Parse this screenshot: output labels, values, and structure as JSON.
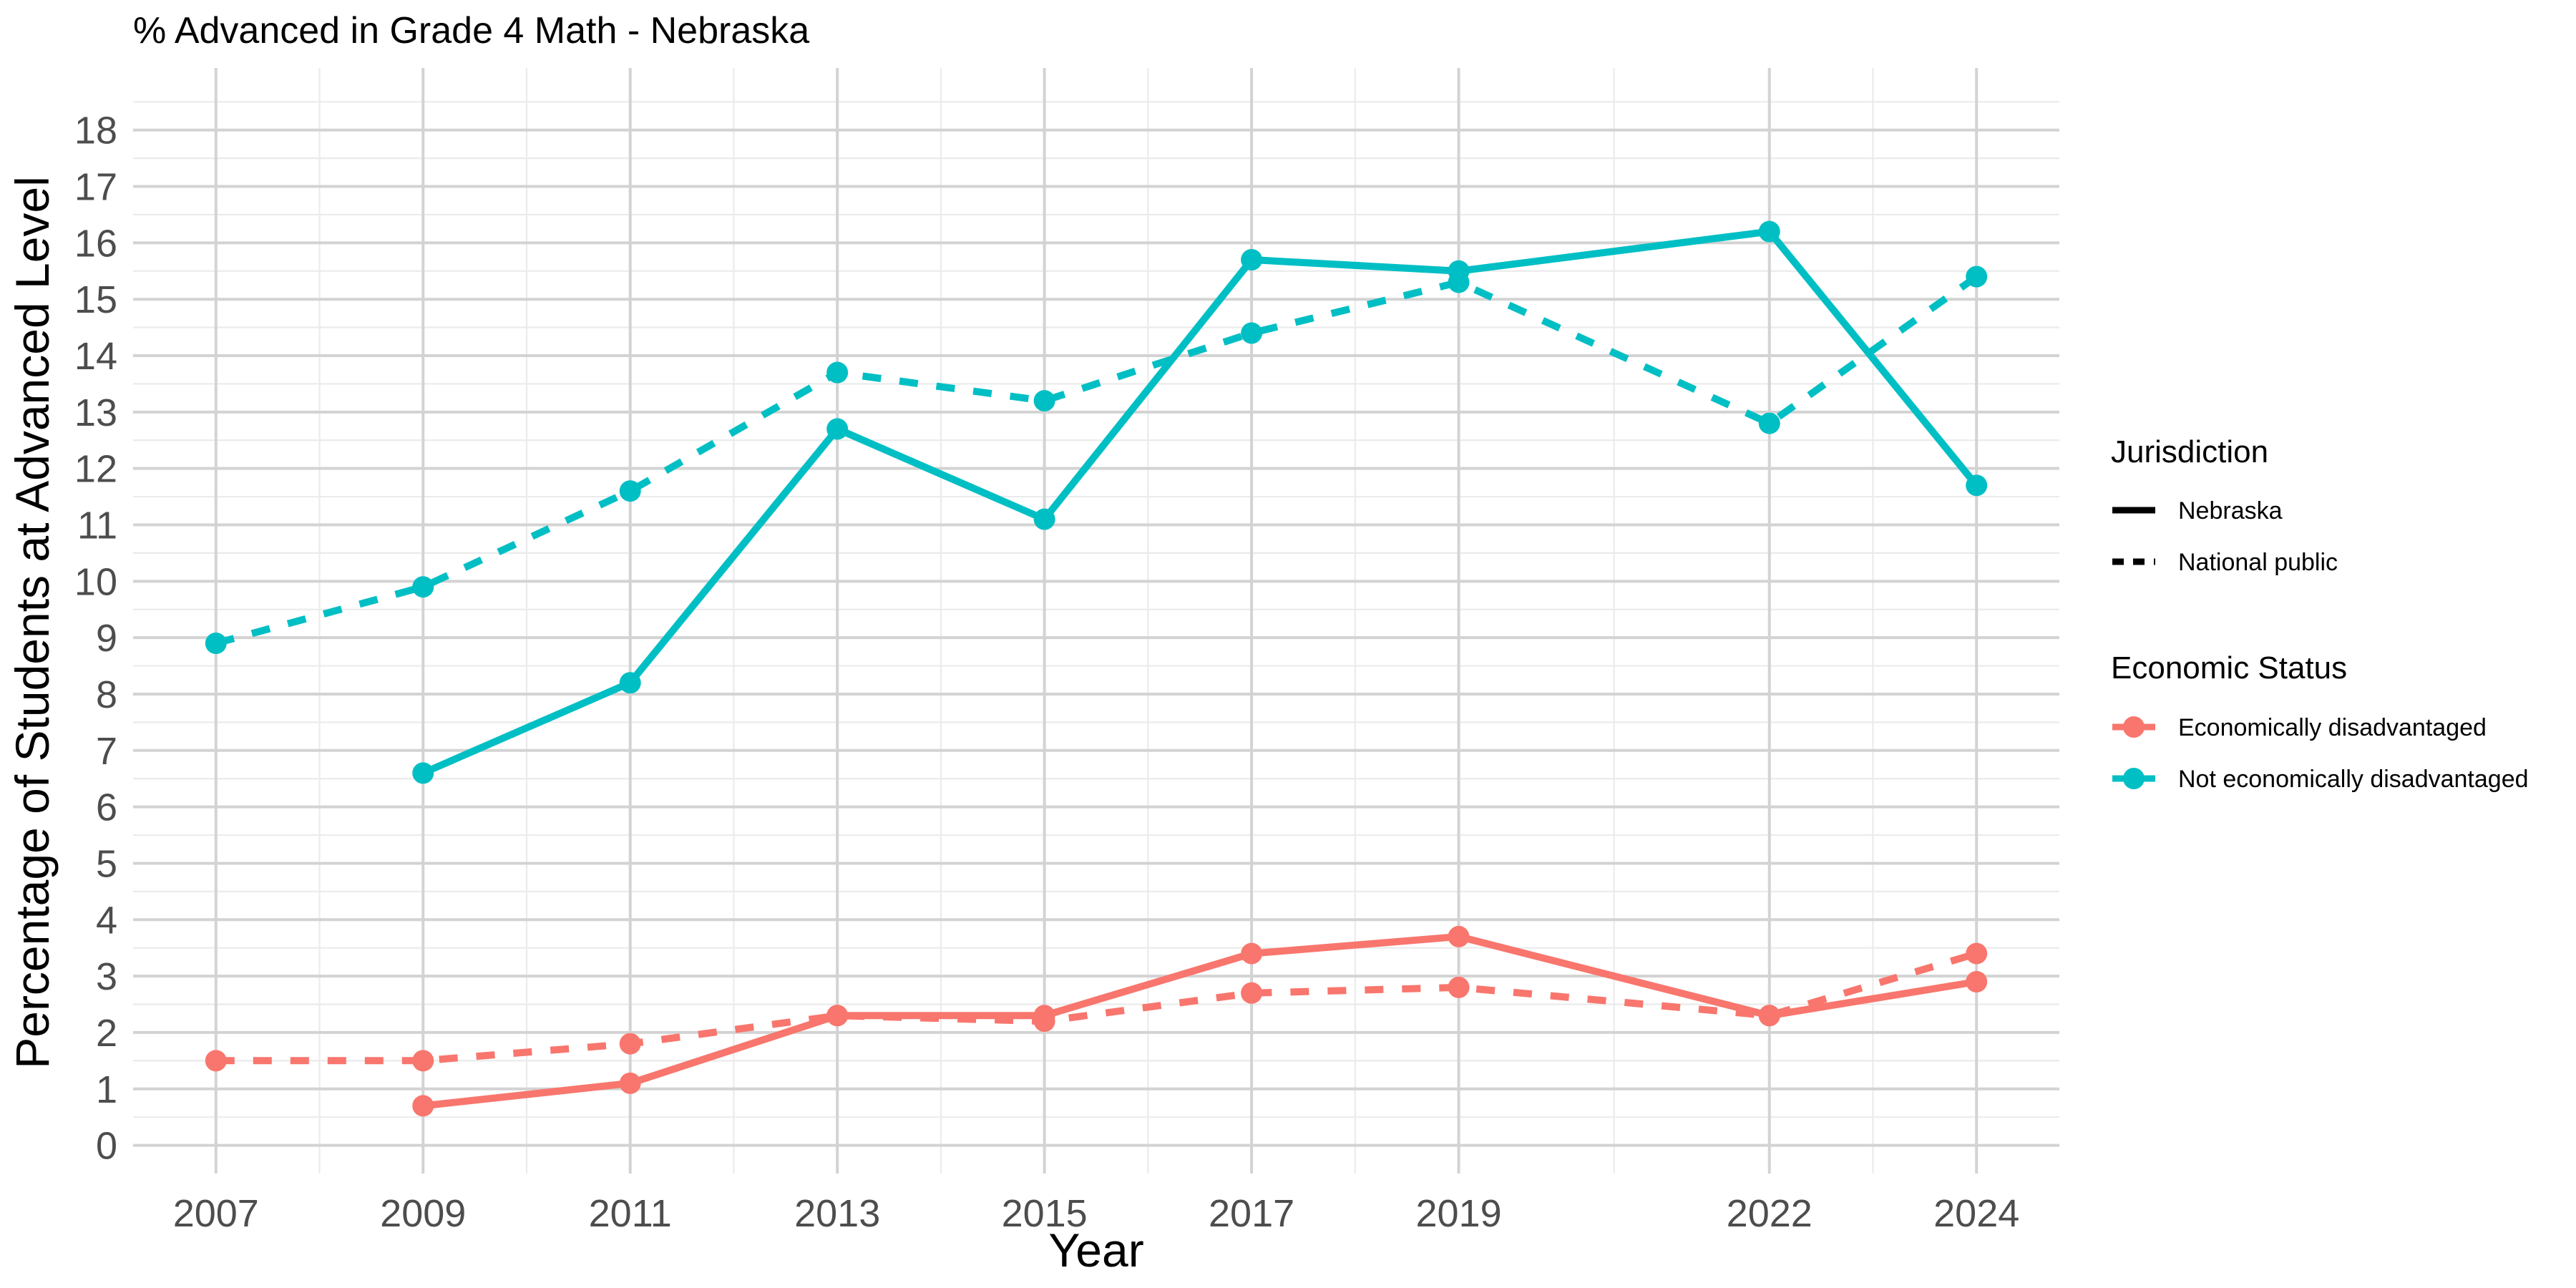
{
  "chart_data": {
    "type": "line",
    "title": "% Advanced in Grade 4 Math - Nebraska",
    "xlabel": "Year",
    "ylabel": "Percentage of Students at Advanced Level",
    "x_ticks": [
      2007,
      2009,
      2011,
      2013,
      2015,
      2017,
      2019,
      2022,
      2024
    ],
    "y_ticks": [
      0,
      1,
      2,
      3,
      4,
      5,
      6,
      7,
      8,
      9,
      10,
      11,
      12,
      13,
      14,
      15,
      16,
      17,
      18
    ],
    "xlim": [
      2006.2,
      2024.8
    ],
    "ylim": [
      -0.5,
      19.1
    ],
    "grid": true,
    "legend_position": "right",
    "legends": [
      {
        "title": "Jurisdiction",
        "entries": [
          {
            "label": "Nebraska",
            "linetype": "solid"
          },
          {
            "label": "National public",
            "linetype": "dashed"
          }
        ]
      },
      {
        "title": "Economic Status",
        "entries": [
          {
            "label": "Economically disadvantaged",
            "color": "#F8766D"
          },
          {
            "label": "Not economically disadvantaged",
            "color": "#00BFC4"
          }
        ]
      }
    ],
    "series": [
      {
        "jurisdiction": "Nebraska",
        "status": "Economically disadvantaged",
        "color": "#F8766D",
        "linetype": "solid",
        "x": [
          2009,
          2011,
          2013,
          2015,
          2017,
          2019,
          2022,
          2024
        ],
        "y": [
          0.7,
          1.1,
          2.3,
          2.3,
          3.4,
          3.7,
          2.3,
          2.9
        ]
      },
      {
        "jurisdiction": "National public",
        "status": "Economically disadvantaged",
        "color": "#F8766D",
        "linetype": "dashed",
        "x": [
          2007,
          2009,
          2011,
          2013,
          2015,
          2017,
          2019,
          2022,
          2024
        ],
        "y": [
          1.5,
          1.5,
          1.8,
          2.3,
          2.2,
          2.7,
          2.8,
          2.3,
          3.4
        ]
      },
      {
        "jurisdiction": "Nebraska",
        "status": "Not economically disadvantaged",
        "color": "#00BFC4",
        "linetype": "solid",
        "x": [
          2009,
          2011,
          2013,
          2015,
          2017,
          2019,
          2022,
          2024
        ],
        "y": [
          6.6,
          8.2,
          12.7,
          11.1,
          15.7,
          15.5,
          16.2,
          11.7
        ]
      },
      {
        "jurisdiction": "National public",
        "status": "Not economically disadvantaged",
        "color": "#00BFC4",
        "linetype": "dashed",
        "x": [
          2007,
          2009,
          2011,
          2013,
          2015,
          2017,
          2019,
          2022,
          2024
        ],
        "y": [
          8.9,
          9.9,
          11.6,
          13.7,
          13.2,
          14.4,
          15.3,
          12.8,
          15.4
        ]
      }
    ]
  }
}
